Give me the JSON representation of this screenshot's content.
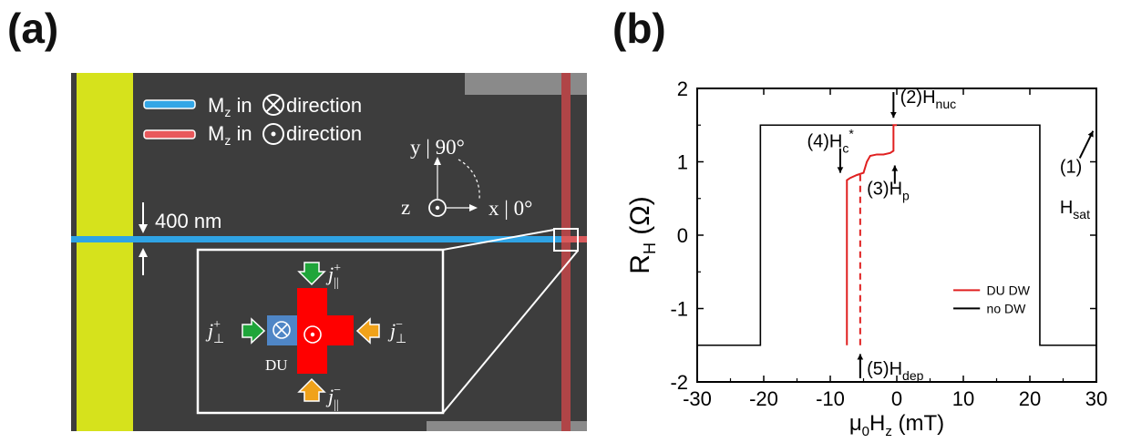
{
  "panel_a": {
    "label": "(a)",
    "legend": [
      {
        "text": "M",
        "sub": "z",
        "tail": "in",
        "symbol": "cross",
        "tail2": "direction",
        "color": "#33a6e6"
      },
      {
        "text": "M",
        "sub": "z",
        "tail": "in",
        "symbol": "dot",
        "tail2": "direction",
        "color": "#e8585b"
      }
    ],
    "axes": {
      "y_label": "y | 90°",
      "z_label": "z",
      "x_label": "x | 0°"
    },
    "width_label": "400 nm",
    "inset": {
      "du_label": "DU",
      "currents": {
        "top": {
          "j": "j",
          "sub": "||",
          "sup": "+"
        },
        "bottom": {
          "j": "j",
          "sub": "||",
          "sup": "−"
        },
        "left": {
          "j": "j",
          "sub": "⊥",
          "sup": "+"
        },
        "right": {
          "j": "j",
          "sub": "⊥",
          "sup": "−"
        }
      }
    },
    "colors": {
      "bg": "#3d3d3d",
      "pad": "#d6e21c",
      "wire_blue": "#2fa3e4",
      "wire_red": "#c14a4c",
      "cross": "#ff0000",
      "du": "#4f86c6",
      "green": "#1fa53a",
      "orange": "#f0a21a"
    }
  },
  "panel_b": {
    "label": "(b)",
    "chart_data": {
      "type": "line",
      "xlabel": "μ0Hz (mT)",
      "ylabel": "RH (Ω)",
      "xlim": [
        -30,
        30
      ],
      "ylim": [
        -2,
        2
      ],
      "xticks": [
        -30,
        -20,
        -10,
        0,
        10,
        20,
        30
      ],
      "yticks": [
        -2,
        -1,
        0,
        1,
        2
      ],
      "series": [
        {
          "name": "no DW",
          "color": "#000000",
          "x": [
            -30,
            -20.5,
            -20.5,
            21.5,
            21.5,
            30,
            21.5,
            21.5,
            -20.5,
            -20.5,
            -30
          ],
          "y": [
            -1.5,
            -1.5,
            1.5,
            1.5,
            -1.5,
            -1.5,
            -1.5,
            1.5,
            1.5,
            -1.5,
            -1.5
          ]
        },
        {
          "name": "DU DW",
          "color": "#e02020",
          "x": [
            -7.5,
            -7.5,
            -7.0,
            -6.0,
            -5.0,
            -4.5,
            -4.0,
            -3.0,
            -2.0,
            -1.0,
            -0.5,
            -0.5,
            0
          ],
          "y": [
            -1.5,
            0.75,
            0.78,
            0.82,
            0.85,
            1.0,
            1.08,
            1.1,
            1.1,
            1.12,
            1.15,
            1.5,
            1.5
          ]
        },
        {
          "name": "dashed",
          "color": "#e02020",
          "dashed": true,
          "x": [
            -5.5,
            -5.5
          ],
          "y": [
            -1.5,
            0.85
          ]
        }
      ],
      "annotations": [
        {
          "text": "(2)H",
          "sub": "nuc",
          "x": 0.5,
          "y": 1.8,
          "arrow": "down"
        },
        {
          "text": "(4)H",
          "sub": "c",
          "sup": "*",
          "x": -13.5,
          "y": 1.2,
          "arrow": "down"
        },
        {
          "text": "(3)H",
          "sub": "p",
          "x": -4.5,
          "y": 0.55,
          "arrow": "up"
        },
        {
          "text": "(1)",
          "x": 24.5,
          "y": 0.85
        },
        {
          "text": "H",
          "sub": "sat",
          "x": 24.5,
          "y": 0.3
        },
        {
          "text": "(5)H",
          "sub": "dep",
          "x": -4.5,
          "y": -1.9,
          "arrow": "up"
        }
      ],
      "legend": [
        {
          "name": "DU DW",
          "color": "#e02020"
        },
        {
          "name": "no DW",
          "color": "#000000"
        }
      ]
    }
  }
}
